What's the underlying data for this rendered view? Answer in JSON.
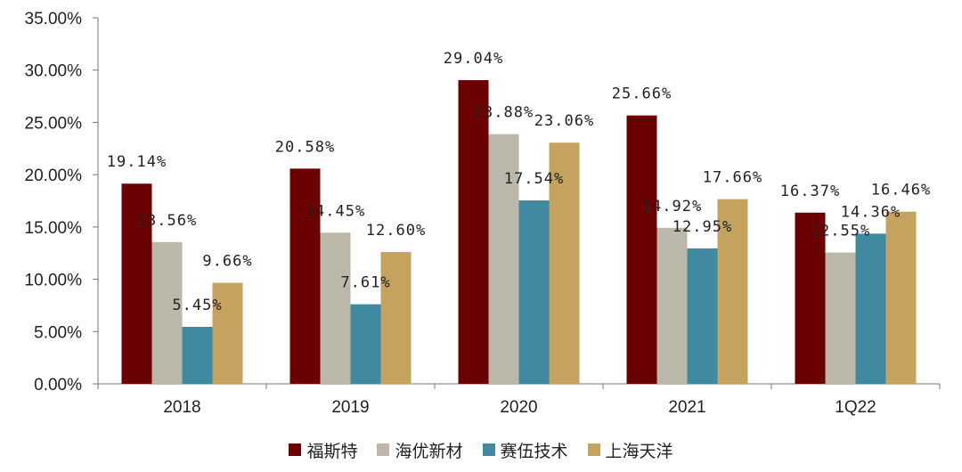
{
  "chart_data": {
    "type": "bar",
    "categories": [
      "2018",
      "2019",
      "2020",
      "2021",
      "1Q22"
    ],
    "series": [
      {
        "name": "福斯特",
        "color": "#6b0000",
        "values": [
          19.14,
          20.58,
          29.04,
          25.66,
          16.37
        ],
        "labels": [
          "19.14%",
          "20.58%",
          "29.04%",
          "25.66%",
          "16.37%"
        ]
      },
      {
        "name": "海优新材",
        "color": "#bbb8a9",
        "values": [
          13.56,
          14.45,
          23.88,
          14.92,
          12.55
        ],
        "labels": [
          "13.56%",
          "14.45%",
          "23.88%",
          "14.92%",
          "12.55%"
        ]
      },
      {
        "name": "赛伍技术",
        "color": "#3f8aa1",
        "values": [
          5.45,
          7.61,
          17.54,
          12.95,
          14.36
        ],
        "labels": [
          "5.45%",
          "7.61%",
          "17.54%",
          "12.95%",
          "14.36%"
        ]
      },
      {
        "name": "上海天洋",
        "color": "#c5a25e",
        "values": [
          9.66,
          12.6,
          23.06,
          17.66,
          16.46
        ],
        "labels": [
          "9.66%",
          "12.60%",
          "23.06%",
          "17.66%",
          "16.46%"
        ]
      }
    ],
    "yticks": [
      "0.00%",
      "5.00%",
      "10.00%",
      "15.00%",
      "20.00%",
      "25.00%",
      "30.00%",
      "35.00%"
    ],
    "ylim": [
      0,
      35
    ],
    "grid": false,
    "legend_position": "bottom"
  }
}
